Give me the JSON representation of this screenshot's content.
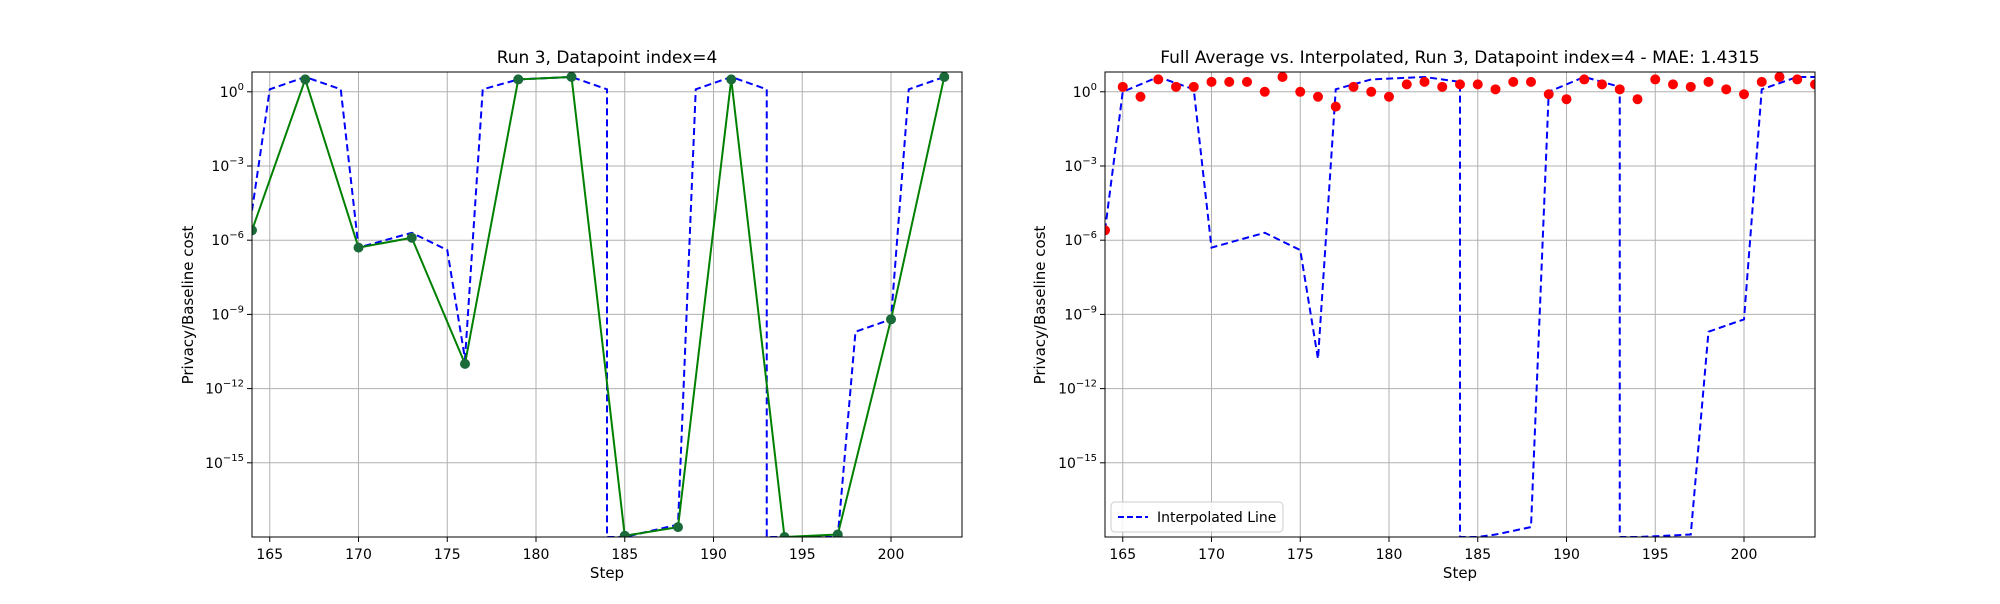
{
  "colors": {
    "interpolated_line": "#0000ff",
    "datapoints_line": "#008000",
    "markers": "#1b6b3a",
    "full_average_points": "#ff0000",
    "grid": "#b0b0b0"
  },
  "chart_data": [
    {
      "type": "line",
      "title": "Run 3, Datapoint index=4",
      "xlabel": "Step",
      "ylabel": "Privacy/Baseline cost",
      "yscale": "log",
      "xlim": [
        164,
        204
      ],
      "ylim_exp": [
        -18,
        0.8
      ],
      "xticks": [
        165,
        170,
        175,
        180,
        185,
        190,
        195,
        200
      ],
      "xtick_labels": [
        "165",
        "170",
        "175",
        "180",
        "185",
        "190",
        "195",
        "200"
      ],
      "yticks_exp": [
        0,
        -3,
        -6,
        -9,
        -12,
        -15
      ],
      "ytick_labels": [
        "10^0",
        "10^-3",
        "10^-6",
        "10^-9",
        "10^-12",
        "10^-15"
      ],
      "grid": true,
      "legend": null,
      "series": [
        {
          "style": "dashed",
          "color": "#0000ff",
          "x": [
            164,
            165,
            167,
            169,
            170,
            173,
            175,
            176,
            177,
            179,
            182,
            184,
            184,
            185,
            188,
            188,
            189,
            191,
            193,
            193,
            194,
            197,
            198,
            200,
            201,
            203
          ],
          "log10_y": [
            -4.8,
            0.1,
            0.6,
            0.1,
            -6.3,
            -5.7,
            -6.4,
            -10.8,
            0.1,
            0.5,
            0.6,
            0.1,
            -18,
            -18,
            -17.5,
            -17.5,
            0.1,
            0.6,
            0.1,
            -18,
            -18,
            -18,
            -9.7,
            -9.2,
            0.1,
            0.6
          ]
        },
        {
          "style": "solid-markers",
          "color": "#008000",
          "x": [
            164,
            167,
            170,
            173,
            176,
            179,
            182,
            185,
            188,
            191,
            194,
            197,
            200,
            203
          ],
          "log10_y": [
            -5.6,
            0.5,
            -6.3,
            -5.9,
            -11.0,
            0.5,
            0.6,
            -17.95,
            -17.6,
            0.5,
            -18,
            -17.9,
            -9.2,
            0.6
          ]
        }
      ]
    },
    {
      "type": "line",
      "title": "Full Average vs. Interpolated, Run 3, Datapoint index=4 - MAE: 1.4315",
      "xlabel": "Step",
      "ylabel": "Privacy/Baseline cost",
      "yscale": "log",
      "xlim": [
        164,
        204
      ],
      "ylim_exp": [
        -18,
        0.8
      ],
      "xticks": [
        165,
        170,
        175,
        180,
        185,
        190,
        195,
        200
      ],
      "xtick_labels": [
        "165",
        "170",
        "175",
        "180",
        "185",
        "190",
        "195",
        "200"
      ],
      "yticks_exp": [
        0,
        -3,
        -6,
        -9,
        -12,
        -15
      ],
      "ytick_labels": [
        "10^0",
        "10^-3",
        "10^-6",
        "10^-9",
        "10^-12",
        "10^-15"
      ],
      "grid": true,
      "legend": {
        "position": "lower-left",
        "entries": [
          "Interpolated Line"
        ]
      },
      "series": [
        {
          "name": "Interpolated Line",
          "style": "dashed",
          "color": "#0000ff",
          "x": [
            164,
            165,
            167,
            169,
            170,
            173,
            175,
            176,
            177,
            179,
            182,
            184,
            184,
            185,
            186,
            188,
            189,
            191,
            193,
            193,
            194,
            195,
            197,
            198,
            200,
            201,
            203,
            204
          ],
          "log10_y": [
            -5.6,
            0.0,
            0.6,
            0.1,
            -6.3,
            -5.7,
            -6.4,
            -10.8,
            0.1,
            0.5,
            0.6,
            0.4,
            -18,
            -18,
            -17.9,
            -17.6,
            0.0,
            0.6,
            0.2,
            -18,
            -18,
            -17.97,
            -17.9,
            -9.7,
            -9.2,
            0.1,
            0.6,
            0.6
          ]
        },
        {
          "style": "scatter",
          "color": "#ff0000",
          "x": [
            164,
            165,
            166,
            167,
            168,
            169,
            170,
            171,
            172,
            173,
            174,
            175,
            176,
            177,
            178,
            179,
            180,
            181,
            182,
            183,
            184,
            185,
            186,
            187,
            188,
            189,
            190,
            191,
            192,
            193,
            194,
            195,
            196,
            197,
            198,
            199,
            200,
            201,
            202,
            203,
            204
          ],
          "log10_y": [
            -5.6,
            0.2,
            -0.2,
            0.5,
            0.2,
            0.2,
            0.4,
            0.4,
            0.4,
            0.0,
            0.6,
            0.0,
            -0.2,
            -0.6,
            0.2,
            0.0,
            -0.2,
            0.3,
            0.4,
            0.2,
            0.3,
            0.3,
            0.1,
            0.4,
            0.4,
            -0.1,
            -0.3,
            0.5,
            0.3,
            0.1,
            -0.3,
            0.5,
            0.3,
            0.2,
            0.4,
            0.1,
            -0.1,
            0.4,
            0.6,
            0.5,
            0.3
          ]
        }
      ]
    }
  ]
}
